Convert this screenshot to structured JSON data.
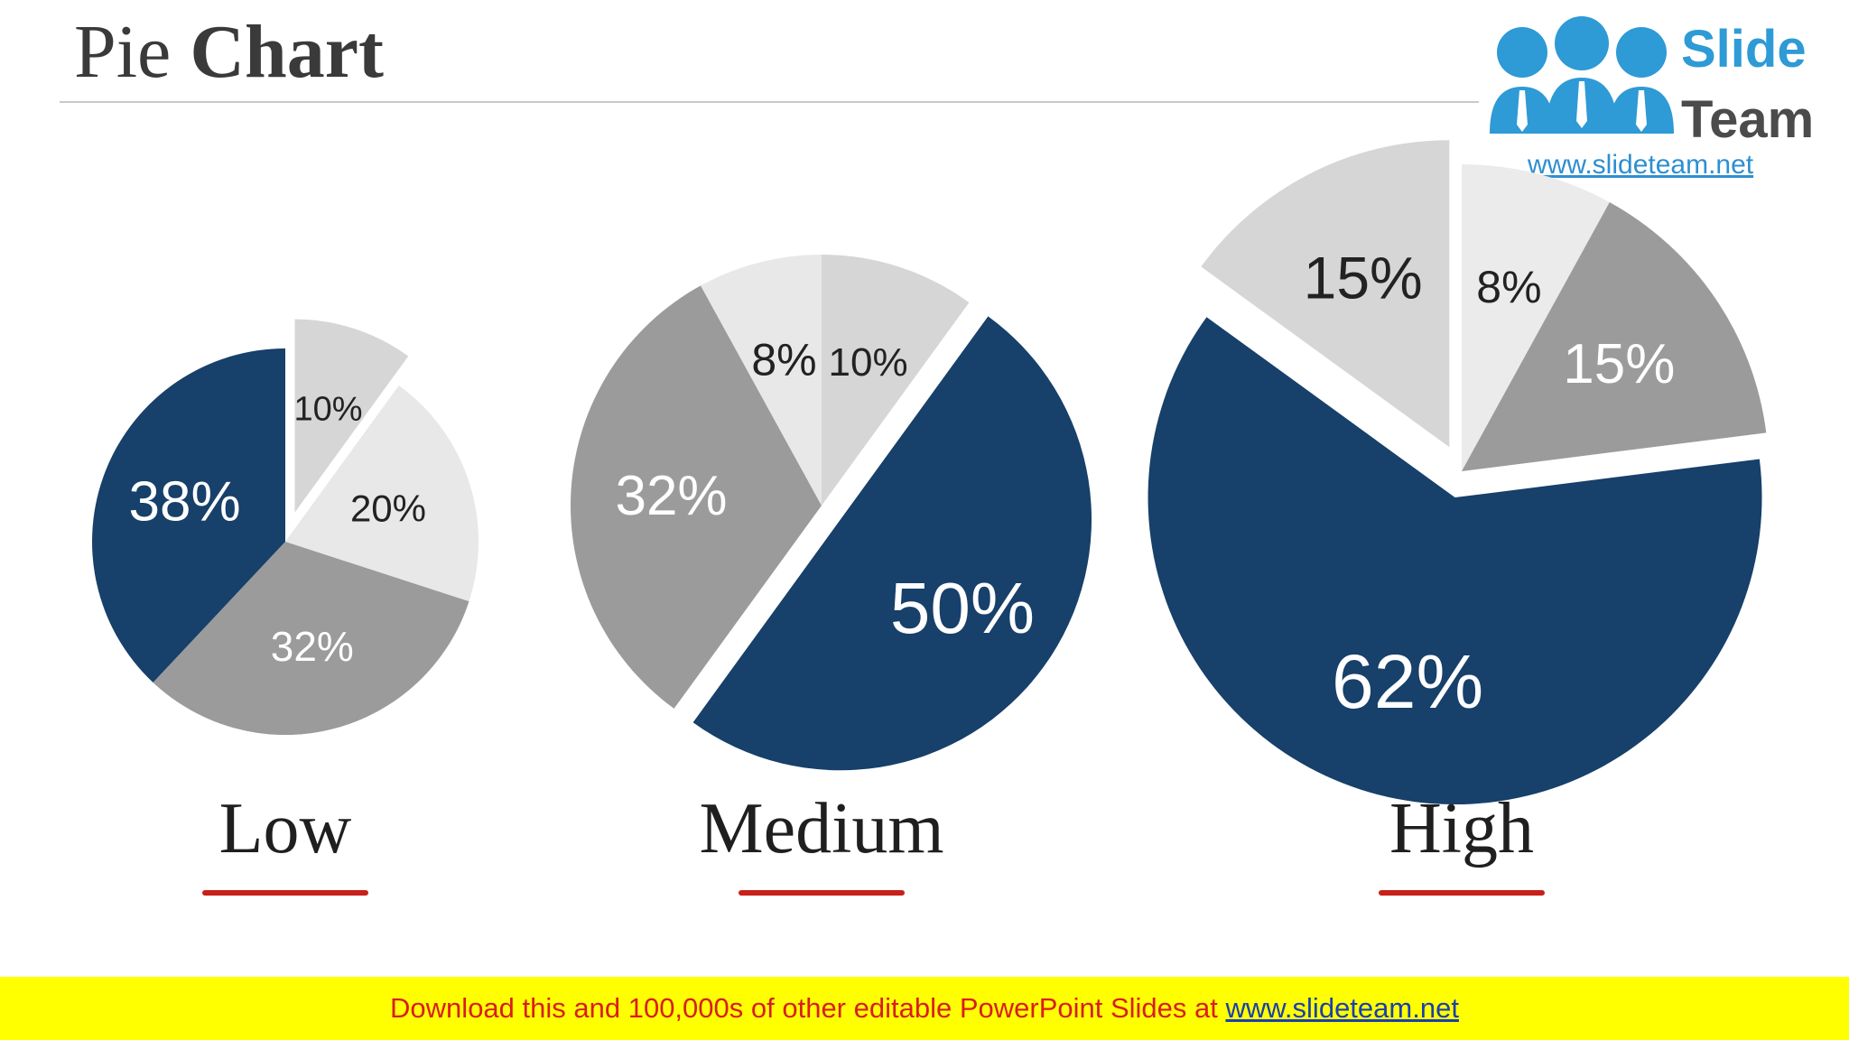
{
  "slide": {
    "title_regular": "Pie",
    "title_bold": "Chart"
  },
  "logo": {
    "word1": "Slide",
    "word2": "Team",
    "url": "www.slideteam.net",
    "colors": {
      "blue": "#2e9ad6",
      "dark": "#4b4b4b"
    }
  },
  "footer": {
    "text": "Download this and 100,000s of other editable PowerPoint Slides at ",
    "link": "www.slideteam.net",
    "background": "#ffff00",
    "text_color": "#d81e1e"
  },
  "colors": {
    "accent_navy": "#17406a",
    "accent_underline": "#c8201a",
    "slice_light": "#d6d6d6",
    "slice_lighter": "#e6e6e6",
    "slice_mid": "#9b9b9b"
  },
  "chart_data": [
    {
      "type": "pie",
      "category": "Low",
      "slices": [
        {
          "label": "10%",
          "value": 10,
          "color": "#d6d6d6",
          "exploded": true
        },
        {
          "label": "20%",
          "value": 20,
          "color": "#e8e8e8"
        },
        {
          "label": "32%",
          "value": 32,
          "color": "#9b9b9b"
        },
        {
          "label": "38%",
          "value": 38,
          "color": "#17406a"
        }
      ]
    },
    {
      "type": "pie",
      "category": "Medium",
      "slices": [
        {
          "label": "10%",
          "value": 10,
          "color": "#d6d6d6"
        },
        {
          "label": "50%",
          "value": 50,
          "color": "#17406a",
          "exploded": true
        },
        {
          "label": "32%",
          "value": 32,
          "color": "#9b9b9b"
        },
        {
          "label": "8%",
          "value": 8,
          "color": "#e8e8e8"
        }
      ]
    },
    {
      "type": "pie",
      "category": "High",
      "slices": [
        {
          "label": "8%",
          "value": 8,
          "color": "#ebebeb"
        },
        {
          "label": "15%",
          "value": 15,
          "color": "#9b9b9b"
        },
        {
          "label": "62%",
          "value": 62,
          "color": "#17406a",
          "exploded": true
        },
        {
          "label": "15%",
          "value": 15,
          "color": "#d6d6d6",
          "exploded": true
        }
      ]
    }
  ]
}
